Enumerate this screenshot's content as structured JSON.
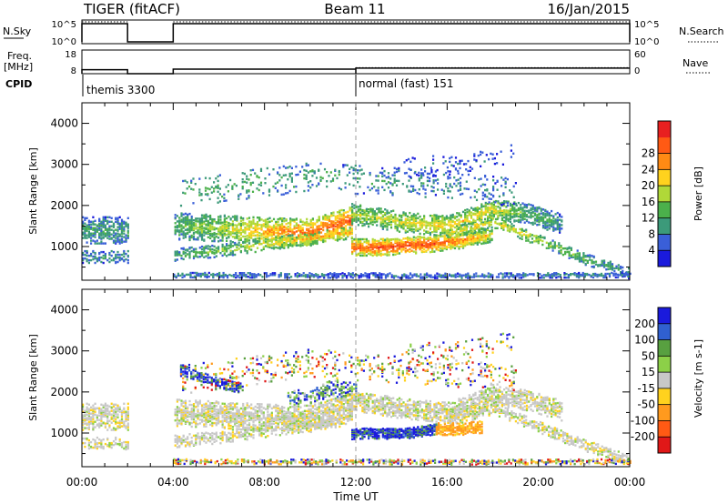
{
  "chart_data": {
    "type": "heatmap",
    "title_left": "TIGER (fitACF)",
    "title_center": "Beam 11",
    "title_right": "16/Jan/2015",
    "x_label": "Time UT",
    "x_ticks": [
      "00:00",
      "04:00",
      "08:00",
      "12:00",
      "16:00",
      "20:00",
      "00:00"
    ],
    "x_range_hours": [
      0,
      24
    ],
    "top_panels": {
      "nsky": {
        "label": "N.Sky",
        "right_label": "N.Search",
        "left_ticks": [
          "10^5",
          "10^0"
        ],
        "right_ticks": [
          "10^5",
          "10^0"
        ],
        "on_intervals_hours": [
          [
            0,
            2
          ],
          [
            4,
            24
          ]
        ]
      },
      "freq": {
        "label_line1": "Freq.",
        "label_line2": "[MHz]",
        "right_label": "Nave",
        "left_ticks": [
          "18",
          "8"
        ],
        "left_range": [
          8,
          18
        ],
        "right_ticks": [
          "60",
          "0"
        ],
        "right_range": [
          0,
          60
        ],
        "frequency_steps": [
          [
            0,
            2,
            10
          ],
          [
            4,
            12,
            10.3
          ],
          [
            12,
            24,
            10.8
          ]
        ],
        "nave_steps": [
          [
            12,
            24,
            18
          ]
        ]
      },
      "cpid": {
        "label": "CPID",
        "modes": [
          {
            "start_hour": 0,
            "name": "themis 3300"
          },
          {
            "start_hour": 12,
            "name": "normal (fast) 151"
          }
        ]
      }
    },
    "panels": [
      {
        "name": "power",
        "ylabel": "Slant Range [km]",
        "ylim": [
          180,
          4500
        ],
        "y_ticks": [
          1000,
          2000,
          3000,
          4000
        ],
        "colorbar": {
          "label": "Power [dB]",
          "ticks": [
            4,
            8,
            12,
            16,
            20,
            24,
            28
          ],
          "range": [
            0,
            32
          ],
          "colors": [
            "#1a1adc",
            "#3a5fd8",
            "#3c9a7a",
            "#4bb04b",
            "#b0d838",
            "#ffd21e",
            "#ff8a14",
            "#ff5a14",
            "#e82020"
          ]
        },
        "bands": [
          {
            "x": [
              0,
              2,
              4,
              6,
              8,
              10,
              11.8
            ],
            "center": [
              1400,
              1400,
              1500,
              1450,
              1380,
              1350,
              1650
            ],
            "width": 650,
            "density": 0.55,
            "level": [
              10,
              10,
              12,
              16,
              22,
              25,
              27
            ]
          },
          {
            "x": [
              0,
              2,
              4,
              6,
              8,
              10,
              11.8
            ],
            "center": [
              750,
              750,
              800,
              900,
              1050,
              1200,
              1350
            ],
            "width": 300,
            "density": 0.4,
            "level": [
              9,
              9,
              11,
              14,
              18,
              20,
              22
            ]
          },
          {
            "x": [
              11.8,
              13,
              15,
              16.5,
              18
            ],
            "center": [
              980,
              980,
              1050,
              1150,
              1300
            ],
            "width": 400,
            "density": 0.7,
            "level": [
              26,
              28,
              28,
              24,
              18
            ]
          },
          {
            "x": [
              11.8,
              14,
              16,
              18,
              19.5,
              21
            ],
            "center": [
              1800,
              1600,
              1500,
              1900,
              1800,
              1550
            ],
            "width": 500,
            "density": 0.55,
            "level": [
              16,
              18,
              20,
              18,
              12,
              10
            ]
          },
          {
            "x": [
              16,
              18,
              20,
              22,
              24
            ],
            "center": [
              1300,
              1600,
              1150,
              700,
              350
            ],
            "width": 280,
            "density": 0.45,
            "level": [
              18,
              20,
              16,
              12,
              8
            ]
          },
          {
            "x": [
              4,
              8,
              12,
              16,
              20,
              24
            ],
            "center": [
              310,
              300,
              300,
              290,
              300,
              310
            ],
            "width": 120,
            "density": 0.55,
            "level": [
              8,
              8,
              6,
              8,
              8,
              8
            ]
          },
          {
            "x": [
              4.3,
              7,
              10,
              13,
              16,
              19
            ],
            "center": [
              2300,
              2500,
              2700,
              2600,
              2500,
              2300
            ],
            "width": 700,
            "density": 0.12,
            "level": [
              12,
              12,
              10,
              10,
              8,
              8
            ]
          },
          {
            "x": [
              14,
              16,
              18,
              19
            ],
            "center": [
              2900,
              3000,
              3100,
              3300
            ],
            "width": 500,
            "density": 0.08,
            "level": [
              6,
              6,
              6,
              6
            ]
          }
        ]
      },
      {
        "name": "velocity",
        "ylabel": "Slant Range [km]",
        "ylim": [
          180,
          4500
        ],
        "y_ticks": [
          1000,
          2000,
          3000,
          4000
        ],
        "colorbar": {
          "label": "Velocity [m s-1]",
          "ticks": [
            200,
            100,
            50,
            15,
            -15,
            -50,
            -100,
            -200
          ],
          "colors": [
            "#1a1adc",
            "#3060d0",
            "#58a040",
            "#8cd048",
            "#c8c8c8",
            "#ffd21e",
            "#ff9a1e",
            "#ff5a14",
            "#e01818"
          ]
        },
        "bands": [
          {
            "x": [
              0,
              2,
              4,
              6,
              8,
              10,
              11.8
            ],
            "center": [
              1400,
              1400,
              1500,
              1450,
              1380,
              1350,
              1650
            ],
            "width": 650,
            "density": 0.55,
            "vel": "gray"
          },
          {
            "x": [
              0,
              2,
              4,
              6,
              8,
              10,
              11.8
            ],
            "center": [
              750,
              750,
              800,
              900,
              1050,
              1200,
              1350
            ],
            "width": 300,
            "density": 0.4,
            "vel": "gray"
          },
          {
            "x": [
              11.8,
              12.5,
              14,
              15.5
            ],
            "center": [
              980,
              1000,
              980,
              1100
            ],
            "width": 260,
            "density": 0.85,
            "vel": "blue"
          },
          {
            "x": [
              15.5,
              16.5,
              17.5
            ],
            "center": [
              1100,
              1100,
              1150
            ],
            "width": 300,
            "density": 0.8,
            "vel": "orange"
          },
          {
            "x": [
              11.8,
              14,
              16,
              18,
              19.5,
              21
            ],
            "center": [
              1800,
              1600,
              1500,
              1900,
              1800,
              1550
            ],
            "width": 500,
            "density": 0.55,
            "vel": "gray"
          },
          {
            "x": [
              16,
              18,
              20,
              22,
              24
            ],
            "center": [
              1300,
              1600,
              1150,
              700,
              350
            ],
            "width": 280,
            "density": 0.45,
            "vel": "gray"
          },
          {
            "x": [
              4,
              8,
              12,
              16,
              20,
              24
            ],
            "center": [
              310,
              300,
              300,
              290,
              300,
              310
            ],
            "width": 120,
            "density": 0.5,
            "vel": "mixed"
          },
          {
            "x": [
              4.3,
              5,
              6,
              7
            ],
            "center": [
              2550,
              2400,
              2200,
              2100
            ],
            "width": 250,
            "density": 0.5,
            "vel": "blue"
          },
          {
            "x": [
              9,
              10,
              11,
              12
            ],
            "center": [
              1800,
              1900,
              2100,
              2000
            ],
            "width": 400,
            "density": 0.35,
            "vel": "bluegreen"
          },
          {
            "x": [
              4.3,
              7,
              10,
              13,
              16,
              19
            ],
            "center": [
              2300,
              2500,
              2700,
              2600,
              2500,
              2300
            ],
            "width": 700,
            "density": 0.12,
            "vel": "mixed"
          },
          {
            "x": [
              14,
              16,
              18,
              19
            ],
            "center": [
              2900,
              3000,
              3100,
              3300
            ],
            "width": 500,
            "density": 0.08,
            "vel": "mixed"
          }
        ]
      }
    ]
  }
}
